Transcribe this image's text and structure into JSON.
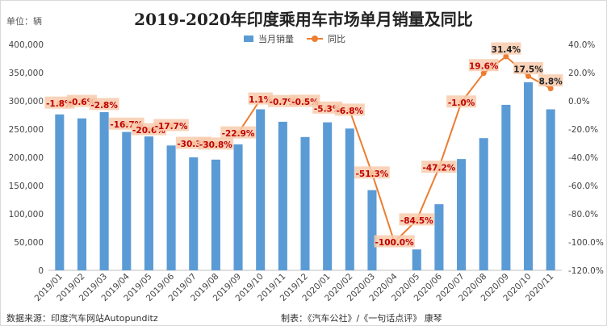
{
  "header": {
    "title": "2019-2020年印度乘用车市场单月销量及同比",
    "unit": "单位：辆"
  },
  "footer": {
    "source": "数据来源：印度汽车网站Autopunditz",
    "credit": "制表：《汽车公社》/《一句话点评》 康琴"
  },
  "colors": {
    "bar": "#5b9bd5",
    "line": "#ed7d31",
    "label_text": "#c00000",
    "label_bg": "#f8cbad"
  },
  "chart_data": {
    "type": "bar",
    "categories": [
      "2019/01",
      "2019/02",
      "2019/03",
      "2019/04",
      "2019/05",
      "2019/06",
      "2019/07",
      "2019/08",
      "2019/09",
      "2019/10",
      "2019/11",
      "2019/12",
      "2020/01",
      "2020/02",
      "2020/03",
      "2020/04",
      "2020/05",
      "2020/06",
      "2020/07",
      "2020/08",
      "2020/09",
      "2020/10",
      "2020/11"
    ],
    "series": [
      {
        "name": "当月销量",
        "type": "bar",
        "axis": "left",
        "values": [
          276000,
          269000,
          280000,
          245000,
          237000,
          221000,
          200000,
          196000,
          223000,
          285000,
          263000,
          236000,
          262000,
          251000,
          142000,
          0,
          37000,
          117000,
          197000,
          234000,
          293000,
          333000,
          285000
        ]
      },
      {
        "name": "同比",
        "type": "line",
        "axis": "right",
        "values": [
          -1.8,
          -0.6,
          -2.8,
          -16.7,
          -20.6,
          -17.7,
          -30.3,
          -30.8,
          -22.9,
          1.1,
          -0.7,
          -0.5,
          -5.3,
          -6.8,
          -51.3,
          -100.0,
          -84.5,
          -47.2,
          -1.0,
          19.6,
          31.4,
          17.5,
          8.8
        ],
        "labels": [
          "-1.8%",
          "-0.6%",
          "-2.8%",
          "-16.7%",
          "-20.6%",
          "-17.7%",
          "-30.3%",
          "-30.8%",
          "-22.9%",
          "1.1%",
          "-0.7%",
          "-0.5%",
          "-5.3%",
          "-6.8%",
          "-51.3%",
          "-100.0%",
          "-84.5%",
          "-47.2%",
          "-1.0%",
          "19.6%",
          "31.4%",
          "17.5%",
          "8.8%"
        ]
      }
    ],
    "y_left": {
      "min": 0,
      "max": 400000,
      "ticks": [
        0,
        50000,
        100000,
        150000,
        200000,
        250000,
        300000,
        350000,
        400000
      ],
      "tick_labels": [
        "0",
        "50,000",
        "100,000",
        "150,000",
        "200,000",
        "250,000",
        "300,000",
        "350,000",
        "400,000"
      ]
    },
    "y_right": {
      "min": -120,
      "max": 40,
      "ticks": [
        -120,
        -100,
        -80,
        -60,
        -40,
        -20,
        0,
        20,
        40
      ],
      "tick_labels": [
        "-120.0%",
        "-100.0%",
        "-80.0%",
        "-60.0%",
        "-40.0%",
        "-20.0%",
        "0.0%",
        "20.0%",
        "40.0%"
      ]
    },
    "grid": false,
    "legend": "top-center"
  }
}
